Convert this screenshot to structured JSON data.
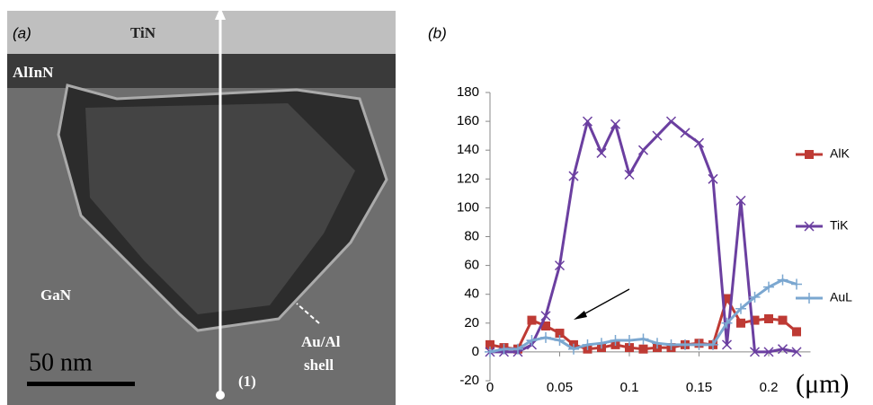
{
  "micrograph": {
    "panel_label": "(a)",
    "labels": [
      "TiN",
      "AlInN",
      "GaN",
      "50 nm",
      "(1)",
      "Au/Al",
      "shell"
    ]
  },
  "chart_data": {
    "type": "line",
    "panel_label": "(b)",
    "xlabel": "(μm)",
    "x": [
      0,
      0.01,
      0.02,
      0.03,
      0.04,
      0.05,
      0.06,
      0.07,
      0.08,
      0.09,
      0.1,
      0.11,
      0.12,
      0.13,
      0.14,
      0.15,
      0.16,
      0.17,
      0.18,
      0.19,
      0.2,
      0.21,
      0.22
    ],
    "series": [
      {
        "name": "AlK",
        "color": "#be3a34",
        "marker": "square",
        "values": [
          5,
          3,
          2,
          22,
          18,
          13,
          5,
          2,
          3,
          5,
          3,
          2,
          3,
          3,
          5,
          6,
          5,
          37,
          20,
          22,
          23,
          22,
          14
        ]
      },
      {
        "name": "TiK",
        "color": "#6b3fa0",
        "marker": "x",
        "values": [
          0,
          0,
          0,
          5,
          25,
          60,
          122,
          160,
          138,
          158,
          123,
          140,
          150,
          160,
          152,
          145,
          120,
          5,
          105,
          0,
          0,
          2,
          0
        ]
      },
      {
        "name": "AuL",
        "color": "#7ba7d0",
        "marker": "plus",
        "values": [
          0,
          2,
          2,
          8,
          10,
          8,
          2,
          5,
          6,
          8,
          8,
          9,
          6,
          5,
          5,
          5,
          5,
          20,
          30,
          38,
          45,
          50,
          47
        ]
      }
    ],
    "xlim": [
      0,
      0.23
    ],
    "xticks": [
      0,
      0.05,
      0.1,
      0.15,
      0.2
    ],
    "ylim": [
      -20,
      180
    ],
    "yticks": [
      -20,
      0,
      20,
      40,
      60,
      80,
      100,
      120,
      140,
      160,
      180
    ],
    "legend": "right"
  }
}
